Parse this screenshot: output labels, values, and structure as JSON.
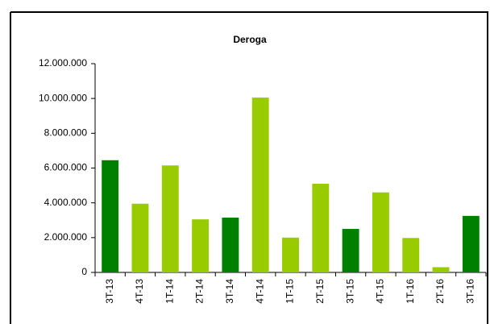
{
  "chart_data": {
    "type": "bar",
    "title": "Deroga",
    "categories": [
      "3T-13",
      "4T-13",
      "1T-14",
      "2T-14",
      "3T-14",
      "4T-14",
      "1T-15",
      "2T-15",
      "3T-15",
      "4T-15",
      "1T-16",
      "2T-16",
      "3T-16"
    ],
    "values": [
      6450000,
      3950000,
      6150000,
      3050000,
      3150000,
      10050000,
      2000000,
      5100000,
      2500000,
      4600000,
      1980000,
      300000,
      3250000
    ],
    "colors": [
      "#008000",
      "#99cc00",
      "#99cc00",
      "#99cc00",
      "#008000",
      "#99cc00",
      "#99cc00",
      "#99cc00",
      "#008000",
      "#99cc00",
      "#99cc00",
      "#99cc00",
      "#008000"
    ],
    "ylim": [
      0,
      12000000
    ],
    "yticks": [
      0,
      {
        "value": 2000000,
        "label": "2.000.000"
      },
      {
        "value": 4000000,
        "label": "4.000.000"
      },
      {
        "value": 6000000,
        "label": "6.000.000"
      },
      {
        "value": 8000000,
        "label": "8.000.000"
      },
      {
        "value": 10000000,
        "label": "10.000.000"
      },
      {
        "value": 12000000,
        "label": "12.000.000"
      }
    ],
    "grid": false
  }
}
